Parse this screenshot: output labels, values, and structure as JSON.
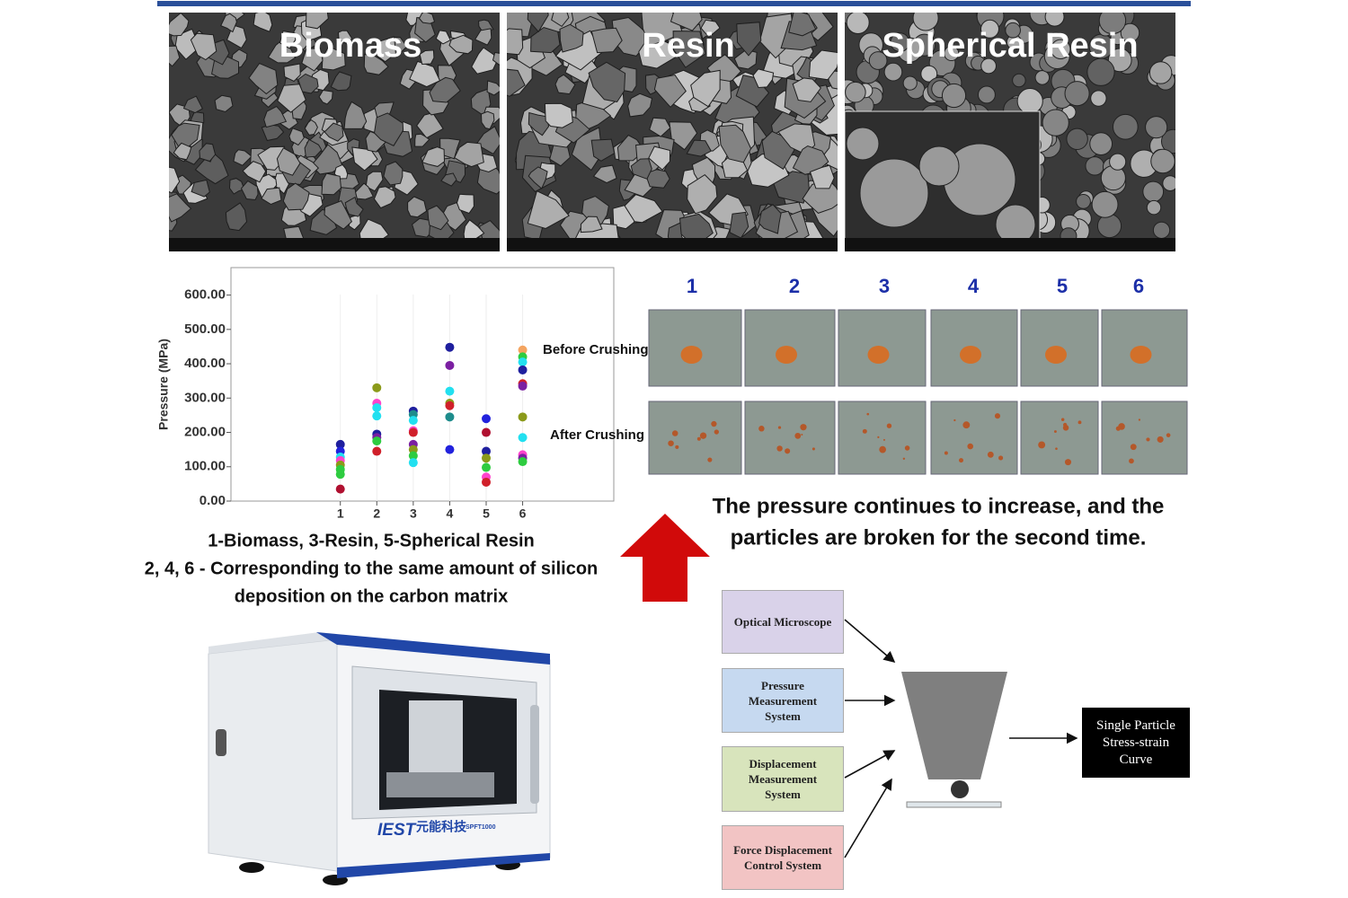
{
  "sem_images": [
    {
      "label": "Biomass"
    },
    {
      "label": "Resin"
    },
    {
      "label": "Spherical Resin"
    }
  ],
  "chart_data": {
    "type": "scatter",
    "ylabel": "Pressure (MPa)",
    "xlim": [
      -2,
      8.5
    ],
    "xticks": [
      1,
      2,
      3,
      4,
      5,
      6
    ],
    "ylim": [
      0,
      680
    ],
    "yticks": [
      {
        "value": 0,
        "label": "0.00"
      },
      {
        "value": 100,
        "label": "100.00"
      },
      {
        "value": 200,
        "label": "200.00"
      },
      {
        "value": 300,
        "label": "300.00"
      },
      {
        "value": 400,
        "label": "400.00"
      },
      {
        "value": 500,
        "label": "500.00"
      },
      {
        "value": 600,
        "label": "600.00"
      }
    ],
    "x": [
      1,
      1,
      1,
      1,
      1,
      1,
      1,
      1,
      2,
      2,
      2,
      2,
      2,
      2,
      2,
      2,
      3,
      3,
      3,
      3,
      3,
      3,
      3,
      3,
      3,
      4,
      4,
      4,
      4,
      4,
      4,
      4,
      5,
      5,
      5,
      5,
      5,
      5,
      5,
      6,
      6,
      6,
      6,
      6,
      6,
      6,
      6,
      6,
      6,
      6
    ],
    "y": [
      165,
      145,
      128,
      118,
      105,
      92,
      78,
      35,
      330,
      285,
      272,
      248,
      195,
      185,
      175,
      145,
      262,
      252,
      235,
      205,
      200,
      165,
      150,
      132,
      112,
      448,
      395,
      320,
      285,
      278,
      245,
      150,
      240,
      200,
      145,
      125,
      98,
      70,
      55,
      440,
      420,
      405,
      382,
      342,
      335,
      245,
      185,
      135,
      125,
      115
    ],
    "colors": [
      "#1f1f9e",
      "#2222dd",
      "#22e0f0",
      "#ff44cc",
      "#8b9a1a",
      "#2ecc40",
      "#2ecc40",
      "#b01030",
      "#8b9a1a",
      "#ff44cc",
      "#22e0f0",
      "#22e0f0",
      "#1f1f9e",
      "#7b1fa2",
      "#2ecc40",
      "#d0202a",
      "#1f1f9e",
      "#1e8c8c",
      "#22e0f0",
      "#ff44cc",
      "#d0202a",
      "#7b1fa2",
      "#8b9a1a",
      "#2ecc40",
      "#22e0f0",
      "#1f1f9e",
      "#7b1fa2",
      "#22e0f0",
      "#8b9a1a",
      "#d0202a",
      "#1e8c8c",
      "#2222dd",
      "#2222dd",
      "#b01030",
      "#1f1f9e",
      "#8b9a1a",
      "#2ecc40",
      "#ff44cc",
      "#d0202a",
      "#f4a460",
      "#2ecc40",
      "#22e0f0",
      "#1f1f9e",
      "#d0202a",
      "#7b1fa2",
      "#8b9a1a",
      "#22e0f0",
      "#ff44cc",
      "#7b1fa2",
      "#2ecc40"
    ],
    "annotations": [
      "Before Crushing",
      "After Crushing"
    ]
  },
  "chart_caption": [
    "1-Biomass, 3-Resin, 5-Spherical Resin",
    "2, 4, 6 - Corresponding to the same amount of silicon",
    "deposition on the carbon matrix"
  ],
  "micrographs": {
    "labels": [
      "1",
      "2",
      "3",
      "4",
      "5",
      "6"
    ],
    "caption": [
      "The pressure continues to increase, and the",
      "particles are broken for the second time."
    ]
  },
  "machine": {
    "brand": "IEST",
    "brand_cn": "元能科技",
    "model": "SPFT1000"
  },
  "flowchart": {
    "inputs": [
      "Optical Microscope",
      "Pressure Measurement System",
      "Displacement Measurement System",
      "Force Displacement Control System"
    ],
    "output": "Single Particle Stress-strain Curve"
  }
}
